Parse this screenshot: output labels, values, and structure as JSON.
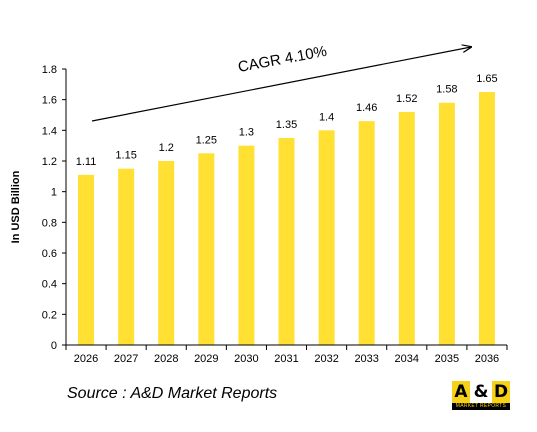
{
  "chart_data": {
    "type": "bar",
    "categories": [
      "2026",
      "2027",
      "2028",
      "2029",
      "2030",
      "2031",
      "2032",
      "2033",
      "2034",
      "2035",
      "2036"
    ],
    "values": [
      1.11,
      1.15,
      1.2,
      1.25,
      1.3,
      1.35,
      1.4,
      1.46,
      1.52,
      1.58,
      1.65
    ],
    "value_labels": [
      "1.11",
      "1.15",
      "1.2",
      "1.25",
      "1.3",
      "1.35",
      "1.4",
      "1.46",
      "1.52",
      "1.58",
      "1.65"
    ],
    "yticks": [
      "0",
      "0.2",
      "0.4",
      "0.6",
      "0.8",
      "1",
      "1.2",
      "1.4",
      "1.6",
      "1.8"
    ],
    "ylim": [
      0,
      1.8
    ],
    "title": "",
    "xlabel": "",
    "ylabel": "In USD Billion",
    "annotation": "CAGR 4.10%",
    "grid": false,
    "bar_color": "#ffe033"
  },
  "source": "Source : A&D Market Reports",
  "logo": {
    "letter_a": "A",
    "ampersand": "&",
    "letter_d": "D",
    "tagline": "MARKET REPORTS",
    "accent_color": "#f7d117"
  }
}
